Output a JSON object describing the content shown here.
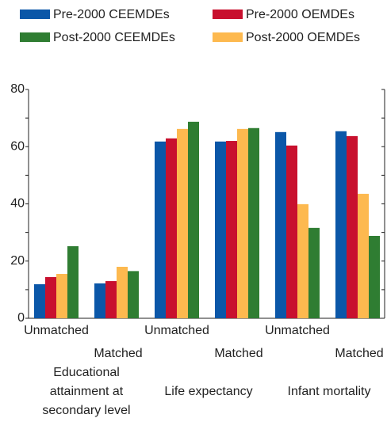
{
  "chart_data": {
    "type": "bar",
    "categories": [
      "Unmatched",
      "Matched",
      "Unmatched",
      "Matched",
      "Unmatched",
      "Matched"
    ],
    "group_labels": [
      "Educational attainment at secondary level",
      "Life expectancy",
      "Infant mortality"
    ],
    "series": [
      {
        "name": "Pre-2000 CEEMDEs",
        "color": "#0b57a8",
        "values": [
          11.9,
          12.2,
          61.8,
          61.8,
          65.1,
          65.4
        ]
      },
      {
        "name": "Pre-2000 OEMDEs",
        "color": "#c8102e",
        "values": [
          14.4,
          13,
          62.9,
          62,
          60.4,
          63.7
        ]
      },
      {
        "name": "Post-2000 CEEMDEs",
        "color": "#2f7d32",
        "values": [
          25.2,
          16.5,
          68.7,
          66.5,
          31.6,
          28.8
        ]
      },
      {
        "name": "Post-2000 OEMDEs",
        "color": "#fdb94f",
        "values": [
          15.5,
          18,
          66.2,
          66.2,
          39.9,
          43.5
        ]
      }
    ],
    "ylim": [
      0,
      80
    ],
    "yticks": [
      0,
      20,
      40,
      60,
      80
    ],
    "yminorticks": [
      10,
      30,
      50,
      70
    ],
    "grid": false
  }
}
